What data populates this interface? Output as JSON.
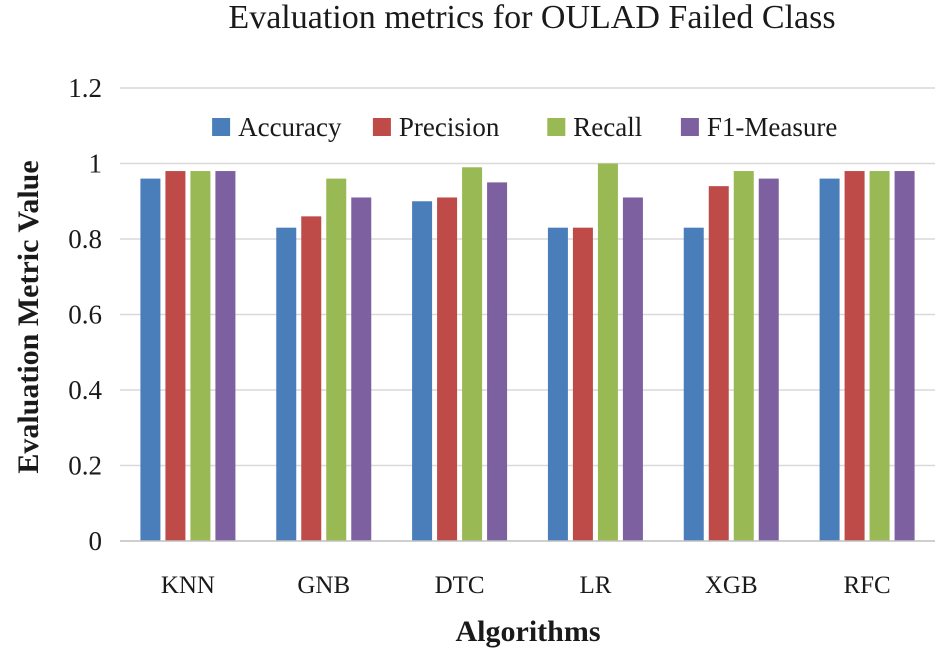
{
  "chart_data": {
    "type": "bar",
    "title": "Evaluation metrics for OULAD Failed Class",
    "xlabel": "Algorithms",
    "ylabel": "Evaluation Metric Value",
    "ylim": [
      0,
      1.2
    ],
    "yticks": [
      0,
      0.2,
      0.4,
      0.6,
      0.8,
      1,
      1.2
    ],
    "ytick_labels": [
      "0",
      "0.2",
      "0.4",
      "0.6",
      "0.8",
      "1",
      "1.2"
    ],
    "grid": true,
    "legend_position": "top",
    "categories": [
      "KNN",
      "GNB",
      "DTC",
      "LR",
      "XGB",
      "RFC"
    ],
    "series": [
      {
        "name": "Accuracy",
        "color": "#4a7ebb",
        "values": [
          0.96,
          0.83,
          0.9,
          0.83,
          0.83,
          0.96
        ]
      },
      {
        "name": "Precision",
        "color": "#be4b48",
        "values": [
          0.98,
          0.86,
          0.91,
          0.83,
          0.94,
          0.98
        ]
      },
      {
        "name": "Recall",
        "color": "#98b954",
        "values": [
          0.98,
          0.96,
          0.99,
          1.0,
          0.98,
          0.98
        ]
      },
      {
        "name": "F1-Measure",
        "color": "#7d60a0",
        "values": [
          0.98,
          0.91,
          0.95,
          0.91,
          0.96,
          0.98
        ]
      }
    ]
  }
}
